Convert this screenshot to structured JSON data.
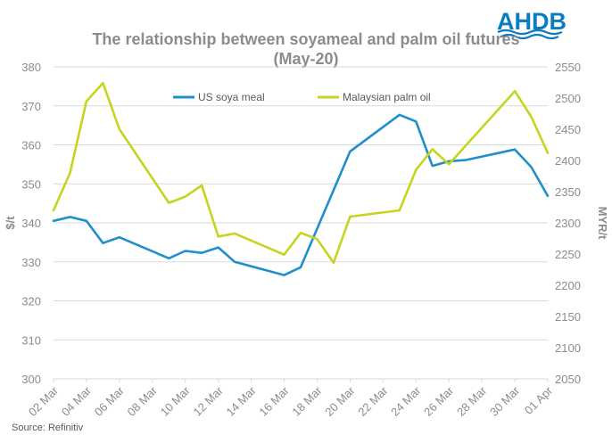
{
  "brand": {
    "logo_text": "AHDB",
    "logo_color": "#0a7cc1"
  },
  "source": "Source: Refinitiv",
  "chart_data": {
    "type": "line",
    "title": "The relationship between soyameal and palm oil futures",
    "subtitle": "(May-20)",
    "ylabel": "$/t",
    "y2label": "MYR/t",
    "ylim": [
      300,
      380
    ],
    "y2lim": [
      2050,
      2550
    ],
    "yticks": [
      300,
      310,
      320,
      330,
      340,
      350,
      360,
      370,
      380
    ],
    "y2ticks": [
      2050,
      2100,
      2150,
      2200,
      2250,
      2300,
      2350,
      2400,
      2450,
      2500,
      2550
    ],
    "x_start": "2020-03-02",
    "x_end": "2020-04-01",
    "xticks": [
      {
        "date": "2020-03-02",
        "label": "02 Mar"
      },
      {
        "date": "2020-03-04",
        "label": "04 Mar"
      },
      {
        "date": "2020-03-06",
        "label": "06 Mar"
      },
      {
        "date": "2020-03-08",
        "label": "08 Mar"
      },
      {
        "date": "2020-03-10",
        "label": "10 Mar"
      },
      {
        "date": "2020-03-12",
        "label": "12 Mar"
      },
      {
        "date": "2020-03-14",
        "label": "14 Mar"
      },
      {
        "date": "2020-03-16",
        "label": "16 Mar"
      },
      {
        "date": "2020-03-18",
        "label": "18 Mar"
      },
      {
        "date": "2020-03-20",
        "label": "20 Mar"
      },
      {
        "date": "2020-03-22",
        "label": "22 Mar"
      },
      {
        "date": "2020-03-24",
        "label": "24 Mar"
      },
      {
        "date": "2020-03-26",
        "label": "26 Mar"
      },
      {
        "date": "2020-03-28",
        "label": "28 Mar"
      },
      {
        "date": "2020-03-30",
        "label": "30 Mar"
      },
      {
        "date": "2020-04-01",
        "label": "01 Apr"
      }
    ],
    "legend_position": "top",
    "grid": "horizontal",
    "series": [
      {
        "name": "US soya meal",
        "axis": "left",
        "color": "#1f8fcc",
        "points": [
          {
            "date": "2020-03-02",
            "y": 340.5
          },
          {
            "date": "2020-03-03",
            "y": 341.5
          },
          {
            "date": "2020-03-04",
            "y": 340.5
          },
          {
            "date": "2020-03-05",
            "y": 334.8
          },
          {
            "date": "2020-03-06",
            "y": 336.3
          },
          {
            "date": "2020-03-09",
            "y": 330.9
          },
          {
            "date": "2020-03-10",
            "y": 332.8
          },
          {
            "date": "2020-03-11",
            "y": 332.3
          },
          {
            "date": "2020-03-12",
            "y": 333.7
          },
          {
            "date": "2020-03-13",
            "y": 330.0
          },
          {
            "date": "2020-03-16",
            "y": 326.6
          },
          {
            "date": "2020-03-17",
            "y": 328.6
          },
          {
            "date": "2020-03-20",
            "y": 358.3
          },
          {
            "date": "2020-03-23",
            "y": 367.7
          },
          {
            "date": "2020-03-24",
            "y": 366.0
          },
          {
            "date": "2020-03-25",
            "y": 354.6
          },
          {
            "date": "2020-03-26",
            "y": 355.8
          },
          {
            "date": "2020-03-27",
            "y": 356.1
          },
          {
            "date": "2020-03-30",
            "y": 358.8
          },
          {
            "date": "2020-03-31",
            "y": 354.3
          },
          {
            "date": "2020-04-01",
            "y": 346.9
          }
        ]
      },
      {
        "name": "Malaysian palm oil",
        "axis": "right",
        "color": "#c6d41d",
        "points": [
          {
            "date": "2020-03-02",
            "y": 2320
          },
          {
            "date": "2020-03-03",
            "y": 2380
          },
          {
            "date": "2020-03-04",
            "y": 2495
          },
          {
            "date": "2020-03-05",
            "y": 2524
          },
          {
            "date": "2020-03-06",
            "y": 2450
          },
          {
            "date": "2020-03-09",
            "y": 2332
          },
          {
            "date": "2020-03-10",
            "y": 2342
          },
          {
            "date": "2020-03-11",
            "y": 2360
          },
          {
            "date": "2020-03-12",
            "y": 2278
          },
          {
            "date": "2020-03-13",
            "y": 2283
          },
          {
            "date": "2020-03-16",
            "y": 2249
          },
          {
            "date": "2020-03-17",
            "y": 2284
          },
          {
            "date": "2020-03-18",
            "y": 2274
          },
          {
            "date": "2020-03-19",
            "y": 2236
          },
          {
            "date": "2020-03-20",
            "y": 2310
          },
          {
            "date": "2020-03-23",
            "y": 2320
          },
          {
            "date": "2020-03-24",
            "y": 2385
          },
          {
            "date": "2020-03-25",
            "y": 2418
          },
          {
            "date": "2020-03-26",
            "y": 2394
          },
          {
            "date": "2020-03-30",
            "y": 2511
          },
          {
            "date": "2020-03-31",
            "y": 2470
          },
          {
            "date": "2020-04-01",
            "y": 2412
          }
        ]
      }
    ]
  }
}
